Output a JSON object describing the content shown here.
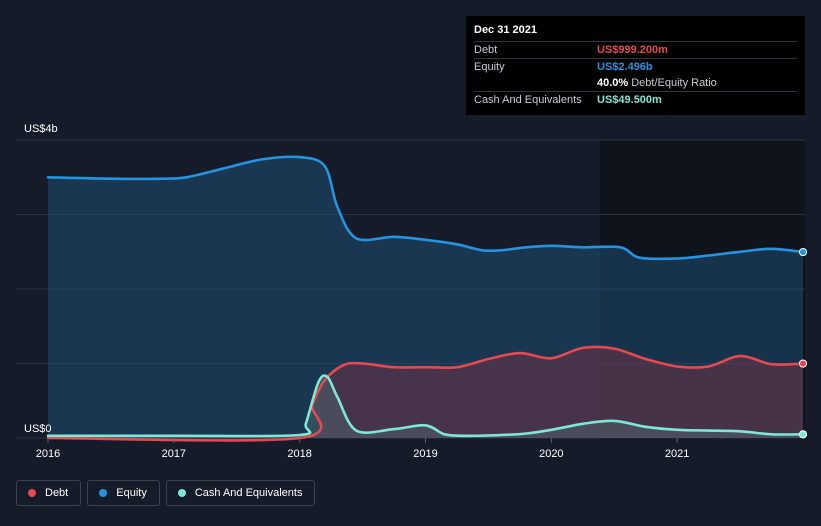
{
  "chart_data": {
    "type": "area",
    "y_unit_top": "US$4b",
    "y_unit_bottom": "US$0",
    "ylim": [
      0,
      4
    ],
    "y_gridlines": [
      0,
      1,
      2,
      3,
      4
    ],
    "xlim": [
      2016.0,
      2022.0
    ],
    "x_ticks": [
      {
        "value": 2016.0,
        "label": "2016"
      },
      {
        "value": 2017.0,
        "label": "2017"
      },
      {
        "value": 2018.0,
        "label": "2018"
      },
      {
        "value": 2019.0,
        "label": "2019"
      },
      {
        "value": 2020.0,
        "label": "2020"
      },
      {
        "value": 2021.0,
        "label": "2021"
      }
    ],
    "series": [
      {
        "name": "Equity",
        "color": "#2394df",
        "points": [
          [
            2016.0,
            3.5
          ],
          [
            2016.5,
            3.48
          ],
          [
            2016.9,
            3.48
          ],
          [
            2017.1,
            3.5
          ],
          [
            2017.4,
            3.62
          ],
          [
            2017.7,
            3.74
          ],
          [
            2018.0,
            3.77
          ],
          [
            2018.2,
            3.65
          ],
          [
            2018.3,
            3.1
          ],
          [
            2018.45,
            2.68
          ],
          [
            2018.75,
            2.7
          ],
          [
            2019.0,
            2.66
          ],
          [
            2019.25,
            2.6
          ],
          [
            2019.45,
            2.52
          ],
          [
            2019.6,
            2.52
          ],
          [
            2019.8,
            2.56
          ],
          [
            2020.0,
            2.58
          ],
          [
            2020.25,
            2.56
          ],
          [
            2020.55,
            2.56
          ],
          [
            2020.7,
            2.42
          ],
          [
            2021.0,
            2.41
          ],
          [
            2021.25,
            2.45
          ],
          [
            2021.5,
            2.5
          ],
          [
            2021.75,
            2.54
          ],
          [
            2022.0,
            2.496
          ]
        ]
      },
      {
        "name": "Debt",
        "color": "#e64950",
        "points": [
          [
            2016.0,
            0.0
          ],
          [
            2018.0,
            0.0
          ],
          [
            2018.1,
            0.45
          ],
          [
            2018.2,
            0.78
          ],
          [
            2018.35,
            0.98
          ],
          [
            2018.5,
            1.0
          ],
          [
            2018.75,
            0.95
          ],
          [
            2019.0,
            0.95
          ],
          [
            2019.25,
            0.95
          ],
          [
            2019.5,
            1.06
          ],
          [
            2019.75,
            1.14
          ],
          [
            2020.0,
            1.07
          ],
          [
            2020.25,
            1.21
          ],
          [
            2020.5,
            1.2
          ],
          [
            2020.75,
            1.06
          ],
          [
            2021.0,
            0.96
          ],
          [
            2021.25,
            0.96
          ],
          [
            2021.5,
            1.1
          ],
          [
            2021.75,
            0.99
          ],
          [
            2022.0,
            0.999
          ]
        ]
      },
      {
        "name": "Cash And Equivalents",
        "color": "#7fe8d4",
        "points": [
          [
            2016.0,
            0.03
          ],
          [
            2017.0,
            0.03
          ],
          [
            2018.0,
            0.04
          ],
          [
            2018.05,
            0.2
          ],
          [
            2018.15,
            0.75
          ],
          [
            2018.22,
            0.82
          ],
          [
            2018.3,
            0.55
          ],
          [
            2018.45,
            0.1
          ],
          [
            2018.75,
            0.12
          ],
          [
            2019.0,
            0.17
          ],
          [
            2019.15,
            0.05
          ],
          [
            2019.3,
            0.03
          ],
          [
            2019.6,
            0.04
          ],
          [
            2019.8,
            0.06
          ],
          [
            2020.0,
            0.11
          ],
          [
            2020.25,
            0.19
          ],
          [
            2020.5,
            0.23
          ],
          [
            2020.75,
            0.15
          ],
          [
            2021.0,
            0.11
          ],
          [
            2021.25,
            0.1
          ],
          [
            2021.5,
            0.09
          ],
          [
            2021.75,
            0.05
          ],
          [
            2022.0,
            0.0495
          ]
        ]
      }
    ],
    "legend": [
      {
        "label": "Debt",
        "color": "#e64950"
      },
      {
        "label": "Equity",
        "color": "#2394df"
      },
      {
        "label": "Cash And Equivalents",
        "color": "#7fe8d4"
      }
    ],
    "tooltip": {
      "date": "Dec 31 2021",
      "debt_label": "Debt",
      "debt_value": "US$999.200m",
      "equity_label": "Equity",
      "equity_value": "US$2.496b",
      "ratio_value": "40.0%",
      "ratio_label": "Debt/Equity Ratio",
      "cash_label": "Cash And Equivalents",
      "cash_value": "US$49.500m"
    }
  }
}
